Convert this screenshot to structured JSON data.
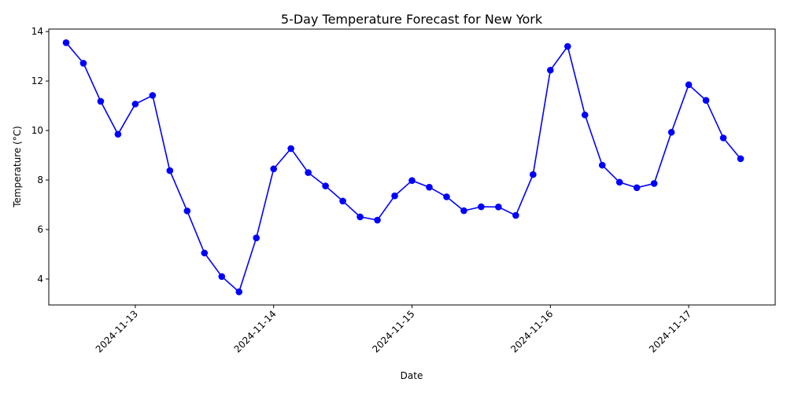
{
  "chart_data": {
    "type": "line",
    "title": "5-Day Temperature Forecast for New York",
    "xlabel": "Date",
    "ylabel": "Temperature (°C)",
    "x_ticks": [
      "2024-11-13",
      "2024-11-14",
      "2024-11-15",
      "2024-11-16",
      "2024-11-17"
    ],
    "y_ticks": [
      4,
      6,
      8,
      10,
      12,
      14
    ],
    "ylim": [
      2.95,
      14.1
    ],
    "xlim": [
      "2024-11-12 09:00",
      "2024-11-17 15:00"
    ],
    "grid": false,
    "color": "#0000ff",
    "series": [
      {
        "x": [
          "2024-11-12 12:00",
          "2024-11-12 15:00",
          "2024-11-12 18:00",
          "2024-11-12 21:00",
          "2024-11-13 00:00",
          "2024-11-13 03:00",
          "2024-11-13 06:00",
          "2024-11-13 09:00",
          "2024-11-13 12:00",
          "2024-11-13 15:00",
          "2024-11-13 18:00",
          "2024-11-13 21:00",
          "2024-11-14 00:00",
          "2024-11-14 03:00",
          "2024-11-14 06:00",
          "2024-11-14 09:00",
          "2024-11-14 12:00",
          "2024-11-14 15:00",
          "2024-11-14 18:00",
          "2024-11-14 21:00",
          "2024-11-15 00:00",
          "2024-11-15 03:00",
          "2024-11-15 06:00",
          "2024-11-15 09:00",
          "2024-11-15 12:00",
          "2024-11-15 15:00",
          "2024-11-15 18:00",
          "2024-11-15 21:00",
          "2024-11-16 00:00",
          "2024-11-16 03:00",
          "2024-11-16 06:00",
          "2024-11-16 09:00",
          "2024-11-16 12:00",
          "2024-11-16 15:00",
          "2024-11-16 18:00",
          "2024-11-16 21:00",
          "2024-11-17 00:00",
          "2024-11-17 03:00",
          "2024-11-17 06:00",
          "2024-11-17 09:00"
        ],
        "y": [
          13.55,
          12.72,
          11.18,
          9.85,
          11.07,
          11.42,
          8.38,
          6.75,
          5.05,
          4.1,
          3.48,
          5.66,
          8.45,
          9.27,
          8.3,
          7.76,
          7.15,
          6.51,
          6.38,
          7.36,
          7.98,
          7.71,
          7.32,
          6.76,
          6.92,
          6.91,
          6.57,
          8.22,
          12.44,
          13.4,
          10.63,
          8.6,
          7.91,
          7.69,
          7.86,
          9.93,
          11.85,
          11.22,
          9.7,
          8.86
        ]
      }
    ]
  }
}
